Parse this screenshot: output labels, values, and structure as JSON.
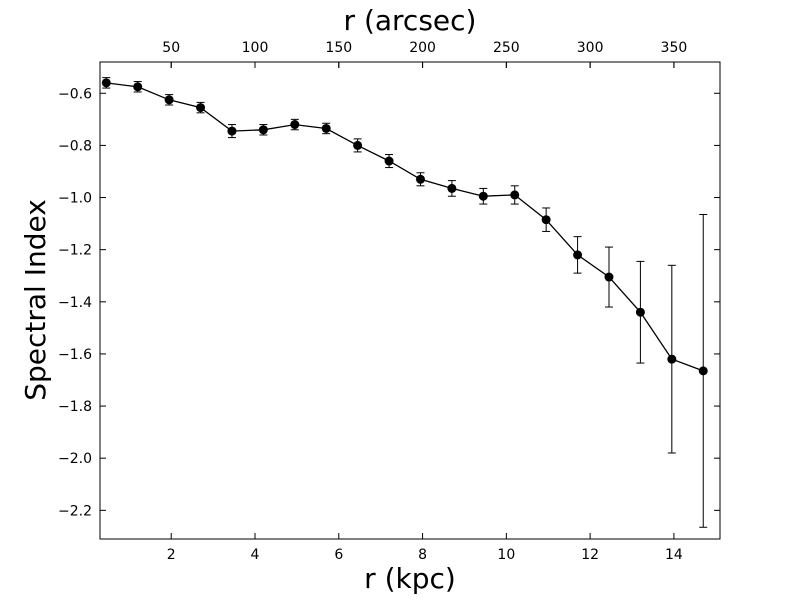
{
  "chart_data": {
    "type": "scatter",
    "xlabel": "r (kpc)",
    "x2label": "r (arcsec)",
    "ylabel": "Spectral Index",
    "xlim": [
      0.3,
      15.1
    ],
    "ylim": [
      -2.31,
      -0.48
    ],
    "xticks": [
      2,
      4,
      6,
      8,
      10,
      12,
      14
    ],
    "x2ticks": [
      50,
      100,
      150,
      200,
      250,
      300,
      350
    ],
    "x2_scale": 0.04,
    "yticks": [
      -0.6,
      -0.8,
      -1.0,
      -1.2,
      -1.4,
      -1.6,
      -1.8,
      -2.0,
      -2.2
    ],
    "grid": false,
    "series": [
      {
        "color": "#000000",
        "marker": "circle",
        "connected": true,
        "x": [
          0.45,
          1.2,
          1.95,
          2.7,
          3.45,
          4.2,
          4.95,
          5.7,
          6.45,
          7.2,
          7.95,
          8.7,
          9.45,
          10.2,
          10.95,
          11.7,
          12.45,
          13.2,
          13.95,
          14.7
        ],
        "y": [
          -0.56,
          -0.575,
          -0.625,
          -0.655,
          -0.745,
          -0.74,
          -0.72,
          -0.735,
          -0.8,
          -0.86,
          -0.93,
          -0.965,
          -0.995,
          -0.99,
          -1.085,
          -1.22,
          -1.305,
          -1.44,
          -1.62,
          -1.665
        ],
        "yerr": [
          0.02,
          0.02,
          0.02,
          0.02,
          0.025,
          0.02,
          0.02,
          0.02,
          0.025,
          0.025,
          0.025,
          0.03,
          0.03,
          0.035,
          0.045,
          0.07,
          0.115,
          0.195,
          0.36,
          0.6
        ]
      }
    ]
  }
}
